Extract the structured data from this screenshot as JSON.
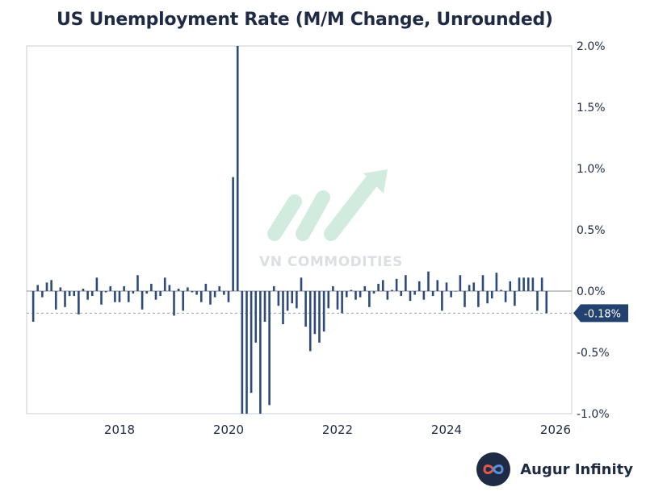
{
  "chart_data": {
    "type": "bar",
    "title": "US Unemployment Rate (M/M Change, Unrounded)",
    "xlabel": "",
    "ylabel": "",
    "x_ticks": [
      "2018",
      "2020",
      "2022",
      "2024",
      "2026"
    ],
    "y_ticks": [
      "2.0%",
      "1.5%",
      "1.0%",
      "0.5%",
      "0.0%",
      "-0.5%",
      "-1.0%"
    ],
    "ylim": [
      -1.0,
      2.0
    ],
    "start": "2016-06",
    "last_value": -0.18,
    "last_value_label": "-0.18%",
    "reference_line": -0.18,
    "values": [
      -0.25,
      0.05,
      -0.05,
      0.07,
      0.09,
      -0.15,
      0.03,
      -0.13,
      -0.04,
      -0.04,
      -0.19,
      0.02,
      -0.07,
      -0.04,
      0.11,
      -0.11,
      -0.01,
      0.04,
      -0.09,
      -0.09,
      0.04,
      -0.09,
      -0.02,
      0.13,
      -0.15,
      -0.02,
      0.06,
      -0.07,
      -0.04,
      0.11,
      0.05,
      -0.2,
      0.02,
      -0.16,
      0.03,
      -0.01,
      -0.03,
      -0.09,
      0.06,
      -0.11,
      -0.05,
      0.04,
      -0.03,
      -0.09,
      0.93,
      2.0,
      -1.05,
      -1.0,
      -0.83,
      -0.42,
      -1.05,
      -0.25,
      -0.93,
      0.04,
      -0.12,
      -0.27,
      -0.16,
      -0.1,
      -0.14,
      0.11,
      -0.29,
      -0.49,
      -0.35,
      -0.42,
      -0.33,
      -0.14,
      0.04,
      -0.15,
      -0.18,
      -0.05,
      0.01,
      -0.07,
      -0.05,
      0.04,
      -0.13,
      -0.02,
      0.06,
      0.09,
      -0.07,
      0.01,
      0.1,
      -0.04,
      0.13,
      -0.08,
      -0.03,
      0.08,
      -0.07,
      0.16,
      -0.04,
      0.09,
      -0.16,
      0.07,
      -0.05,
      0.0,
      0.13,
      -0.13,
      0.05,
      0.07,
      -0.13,
      0.13,
      -0.1,
      -0.06,
      0.15,
      0.01,
      -0.09,
      0.08,
      -0.12,
      0.11,
      0.11,
      0.11,
      0.11,
      -0.16,
      0.11,
      -0.18
    ]
  },
  "brand": {
    "name": "Augur Infinity",
    "logo_icon": "infinity-icon"
  },
  "watermark": {
    "text": "VN COMMODITIES"
  },
  "colors": {
    "bar": "#2e4a7d",
    "text": "#1f2a44",
    "zero_line": "#8a8f99",
    "ref_line": "#9aa0a8",
    "badge": "#24426f"
  }
}
